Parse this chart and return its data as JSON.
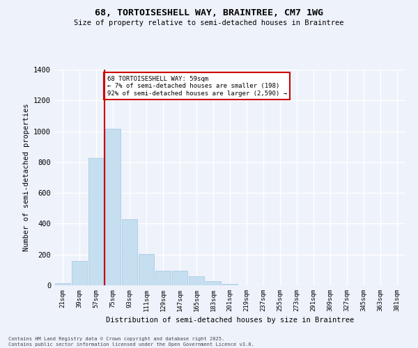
{
  "title1": "68, TORTOISESHELL WAY, BRAINTREE, CM7 1WG",
  "title2": "Size of property relative to semi-detached houses in Braintree",
  "xlabel": "Distribution of semi-detached houses by size in Braintree",
  "ylabel": "Number of semi-detached properties",
  "bar_color": "#c5dff0",
  "bar_edge_color": "#a0c4e0",
  "bg_color": "#eef2fa",
  "grid_color": "#ffffff",
  "categories": [
    "21sqm",
    "39sqm",
    "57sqm",
    "75sqm",
    "93sqm",
    "111sqm",
    "129sqm",
    "147sqm",
    "165sqm",
    "183sqm",
    "201sqm",
    "219sqm",
    "237sqm",
    "255sqm",
    "273sqm",
    "291sqm",
    "309sqm",
    "327sqm",
    "345sqm",
    "363sqm",
    "381sqm"
  ],
  "values": [
    15,
    160,
    825,
    1015,
    430,
    205,
    95,
    95,
    60,
    25,
    10,
    0,
    0,
    0,
    0,
    0,
    0,
    0,
    0,
    0,
    0
  ],
  "annotation_text": "68 TORTOISESHELL WAY: 59sqm\n← 7% of semi-detached houses are smaller (198)\n92% of semi-detached houses are larger (2,590) →",
  "annotation_box_color": "#ffffff",
  "annotation_box_edge": "#cc0000",
  "vline_color": "#cc0000",
  "vline_x_index": 2,
  "ylim": [
    0,
    1400
  ],
  "yticks": [
    0,
    200,
    400,
    600,
    800,
    1000,
    1200,
    1400
  ],
  "footer1": "Contains HM Land Registry data © Crown copyright and database right 2025.",
  "footer2": "Contains public sector information licensed under the Open Government Licence v3.0."
}
